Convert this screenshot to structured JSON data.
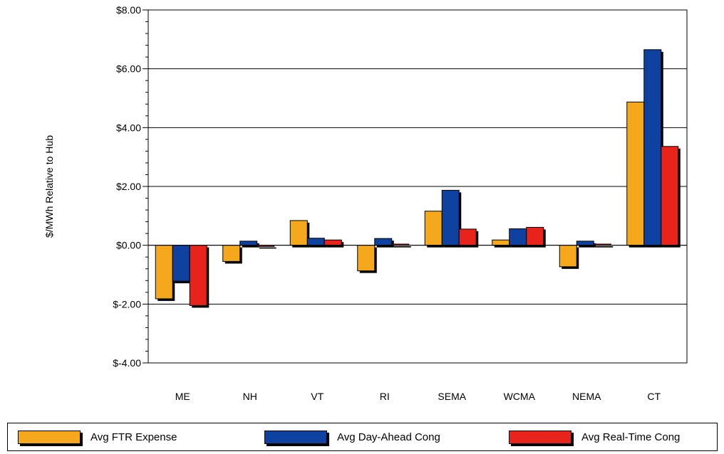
{
  "chart_data": {
    "type": "bar",
    "categories": [
      "ME",
      "NH",
      "VT",
      "RI",
      "SEMA",
      "WCMA",
      "NEMA",
      "CT"
    ],
    "series": [
      {
        "name": "Avg FTR Expense",
        "color": "#F5A81C",
        "values": [
          -1.82,
          -0.55,
          0.84,
          -0.87,
          1.16,
          0.18,
          -0.73,
          4.87
        ]
      },
      {
        "name": "Avg Day-Ahead Cong",
        "color": "#0E41A0",
        "values": [
          -1.22,
          0.14,
          0.24,
          0.23,
          1.87,
          0.56,
          0.14,
          6.65
        ]
      },
      {
        "name": "Avg Real-Time Cong",
        "color": "#E8231B",
        "values": [
          -2.05,
          -0.04,
          0.18,
          0.04,
          0.55,
          0.61,
          0.04,
          3.36
        ]
      }
    ],
    "ylabel": "$/MWh Relative to Hub",
    "ylim": [
      -4,
      8
    ],
    "yticks": [
      -4,
      -2,
      0,
      2,
      4,
      6,
      8
    ],
    "ytick_labels": [
      "$-4.00",
      "$-2.00",
      "$0.00",
      "$2.00",
      "$4.00",
      "$6.00",
      "$8.00"
    ],
    "grid": true,
    "legend_position": "bottom"
  }
}
